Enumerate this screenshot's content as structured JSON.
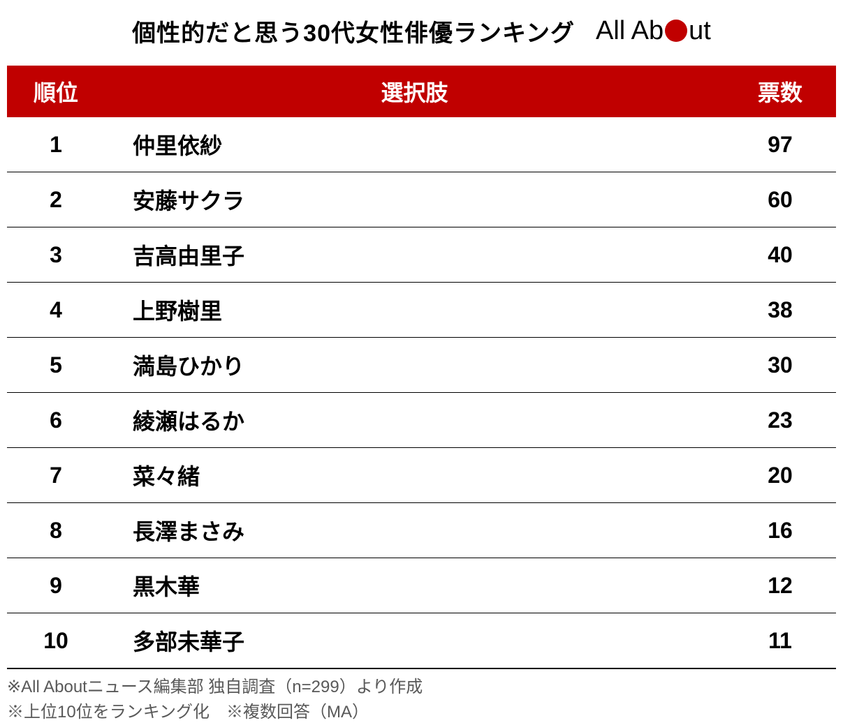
{
  "title": "個性的だと思う30代女性俳優ランキング",
  "logo": {
    "text_before": "All Ab",
    "text_after": "ut",
    "dot_color": "#c00000"
  },
  "table": {
    "type": "table",
    "header_bg_color": "#c00000",
    "header_text_color": "#ffffff",
    "row_border_color": "#000000",
    "columns": [
      {
        "key": "rank",
        "label": "順位",
        "width": 140,
        "align": "center"
      },
      {
        "key": "name",
        "label": "選択肢",
        "align": "left"
      },
      {
        "key": "votes",
        "label": "票数",
        "width": 160,
        "align": "center"
      }
    ],
    "rows": [
      {
        "rank": "1",
        "name": "仲里依紗",
        "votes": "97"
      },
      {
        "rank": "2",
        "name": "安藤サクラ",
        "votes": "60"
      },
      {
        "rank": "3",
        "name": "吉高由里子",
        "votes": "40"
      },
      {
        "rank": "4",
        "name": "上野樹里",
        "votes": "38"
      },
      {
        "rank": "5",
        "name": "満島ひかり",
        "votes": "30"
      },
      {
        "rank": "6",
        "name": "綾瀬はるか",
        "votes": "23"
      },
      {
        "rank": "7",
        "name": "菜々緒",
        "votes": "20"
      },
      {
        "rank": "8",
        "name": "長澤まさみ",
        "votes": "16"
      },
      {
        "rank": "9",
        "name": "黒木華",
        "votes": "12"
      },
      {
        "rank": "10",
        "name": "多部未華子",
        "votes": "11"
      }
    ],
    "title_fontsize": 34,
    "header_fontsize": 32,
    "cell_fontsize": 32,
    "footnote_fontsize": 24,
    "footnote_color": "#595959"
  },
  "footnotes": [
    "※All Aboutニュース編集部 独自調査（n=299）より作成",
    "※上位10位をランキング化　※複数回答（MA）"
  ]
}
